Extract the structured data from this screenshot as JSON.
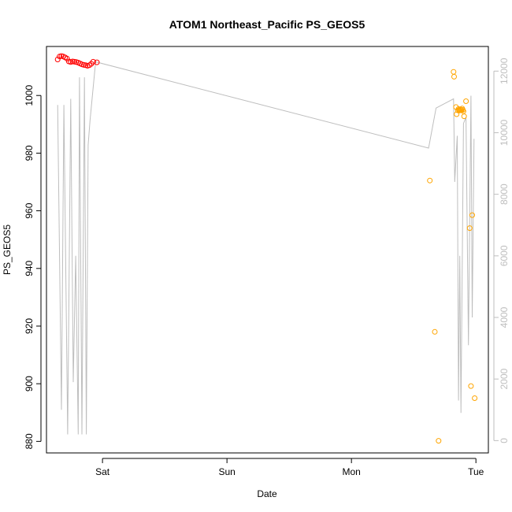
{
  "chart_data": {
    "type": "scatter",
    "title": "ATOM1 Northeast_Pacific PS_GEOS5",
    "xlabel": "Date",
    "ylabel": "PS_GEOS5",
    "x_ticks": [
      "Sat",
      "Sun",
      "Mon",
      "Tue"
    ],
    "x_range_days": [
      -0.45,
      3.1
    ],
    "ylim": [
      876,
      1017
    ],
    "y_ticks": [
      880,
      900,
      920,
      940,
      960,
      980,
      1000
    ],
    "y2lim": [
      -400,
      12800
    ],
    "y2_ticks": [
      0,
      2000,
      4000,
      6000,
      8000,
      10000,
      12000
    ],
    "grid": false,
    "colors": {
      "series_red": "#ff0000",
      "series_orange": "#ffa500",
      "line_gray": "#bebebe"
    },
    "series": [
      {
        "axis": "left",
        "color": "#ff0000",
        "x": [
          -0.36,
          -0.345,
          -0.33,
          -0.315,
          -0.3,
          -0.285,
          -0.27,
          -0.255,
          -0.24,
          -0.225,
          -0.21,
          -0.195,
          -0.18,
          -0.165,
          -0.15,
          -0.135,
          -0.12,
          -0.105,
          -0.09,
          -0.075,
          -0.045
        ],
        "y": [
          1012.5,
          1013.5,
          1013.7,
          1013.5,
          1013.2,
          1012.8,
          1011.8,
          1011.6,
          1011.8,
          1011.7,
          1011.6,
          1011.4,
          1011.1,
          1010.8,
          1010.6,
          1010.5,
          1010.3,
          1010.5,
          1011.0,
          1011.7,
          1011.5
        ]
      },
      {
        "axis": "left",
        "color": "#ffa500",
        "x": [
          2.63,
          2.67,
          2.7,
          2.82,
          2.825,
          2.84,
          2.845,
          2.855,
          2.86,
          2.865,
          2.87,
          2.875,
          2.88,
          2.885,
          2.89,
          2.895,
          2.9,
          2.905,
          2.92,
          2.95,
          2.96,
          2.97,
          2.99
        ],
        "y": [
          970.5,
          918.0,
          880.2,
          1008.2,
          1006.5,
          996.0,
          993.5,
          994.8,
          995.3,
          995.0,
          994.8,
          995.2,
          995.0,
          994.9,
          995.5,
          995.0,
          994.5,
          992.8,
          998.0,
          954.0,
          899.2,
          958.5,
          895.0
        ]
      },
      {
        "axis": "right",
        "color": "#bebebe",
        "x": [
          -0.36,
          -0.33,
          -0.31,
          -0.28,
          -0.255,
          -0.235,
          -0.215,
          -0.195,
          -0.185,
          -0.165,
          -0.145,
          -0.13,
          -0.115,
          -0.1,
          -0.055,
          2.62,
          2.68,
          2.82,
          2.83,
          2.85,
          2.86,
          2.87,
          2.88,
          2.9,
          2.92,
          2.94,
          2.96,
          2.97,
          2.985
        ],
        "y": [
          10900,
          1000,
          10900,
          200,
          11100,
          1900,
          6000,
          200,
          11800,
          200,
          11800,
          200,
          9600,
          10400,
          12300,
          9500,
          10800,
          11100,
          8400,
          9900,
          1300,
          6000,
          900,
          10300,
          10500,
          3100,
          11200,
          4000,
          9800
        ]
      }
    ]
  }
}
